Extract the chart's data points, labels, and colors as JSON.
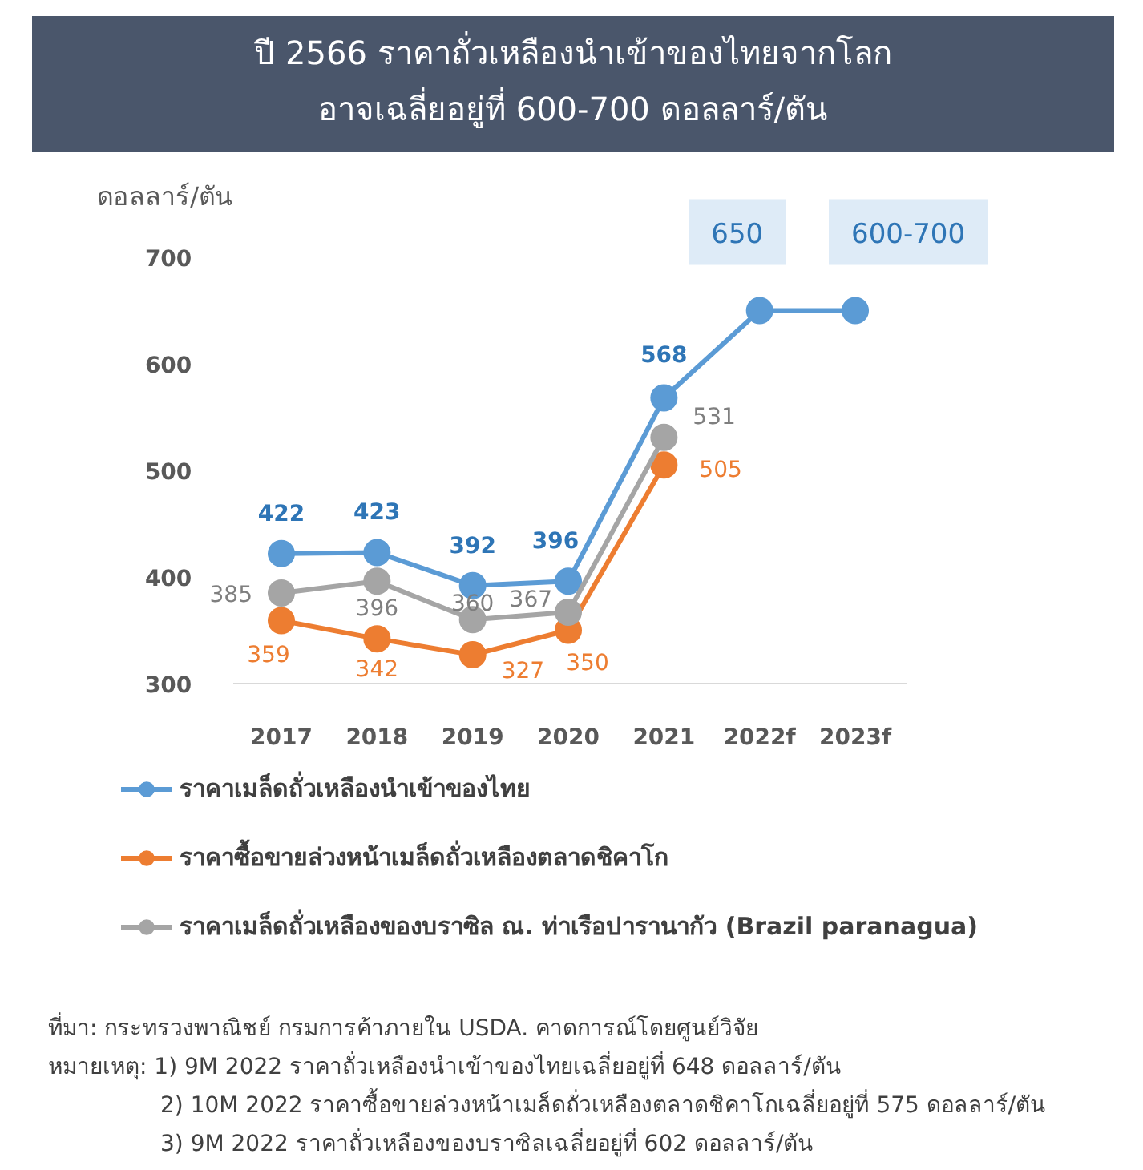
{
  "chart_data": {
    "type": "line",
    "title": "ปี 2566 ราคาถั่วเหลืองนำเข้าของไทยจากโลก\nอาจเฉลี่ยอยู่ที่ 600-700 ดอลลาร์/ตัน",
    "ylabel": "ดอลลาร์/ตัน",
    "categories": [
      "2017",
      "2018",
      "2019",
      "2020",
      "2021",
      "2022f",
      "2023f"
    ],
    "series": [
      {
        "name": "ราคาเมล็ดถั่วเหลืองนำเข้าของไทย",
        "color": "#5b9bd5",
        "values": [
          422,
          423,
          392,
          396,
          568,
          650,
          650
        ],
        "value_labels": [
          "422",
          "423",
          "392",
          "396",
          "568",
          "650",
          "600-700"
        ]
      },
      {
        "name": "ราคาซื้อขายล่วงหน้าเมล็ดถั่วเหลืองตลาดชิคาโก",
        "color": "#ed7d31",
        "values": [
          359,
          342,
          327,
          350,
          505,
          null,
          null
        ],
        "value_labels": [
          "359",
          "342",
          "327",
          "350",
          "505",
          null,
          null
        ]
      },
      {
        "name": "ราคาเมล็ดถั่วเหลืองของบราซิล ณ. ท่าเรือปารานากัว (Brazil paranagua)",
        "color": "#a5a5a5",
        "values": [
          385,
          396,
          360,
          367,
          531,
          null,
          null
        ],
        "value_labels": [
          "385",
          "396",
          "360",
          "367",
          "531",
          null,
          null
        ]
      }
    ],
    "ylim": [
      300,
      700
    ],
    "yticks": [
      300,
      400,
      500,
      600,
      700
    ],
    "legend": "bottom",
    "marker": "circle",
    "line_style": "solid",
    "annotations": [
      "ที่มา: กระทรวงพาณิชย์ กรมการค้าภายใน USDA. คาดการณ์โดยศูนย์วิจัย",
      "หมายเหตุ: 1) 9M 2022 ราคาถั่วเหลืองนำเข้าของไทยเฉลี่ยอยู่ที่ 648 ดอลลาร์/ตัน",
      "2) 10M 2022 ราคาซื้อขายล่วงหน้าเมล็ดถั่วเหลืองตลาดชิคาโกเฉลี่ยอยู่ที่ 575 ดอลลาร์/ตัน",
      "3) 9M 2022 ราคาถั่วเหลืองของบราซิลเฉลี่ยอยู่ที่ 602 ดอลลาร์/ตัน"
    ]
  }
}
